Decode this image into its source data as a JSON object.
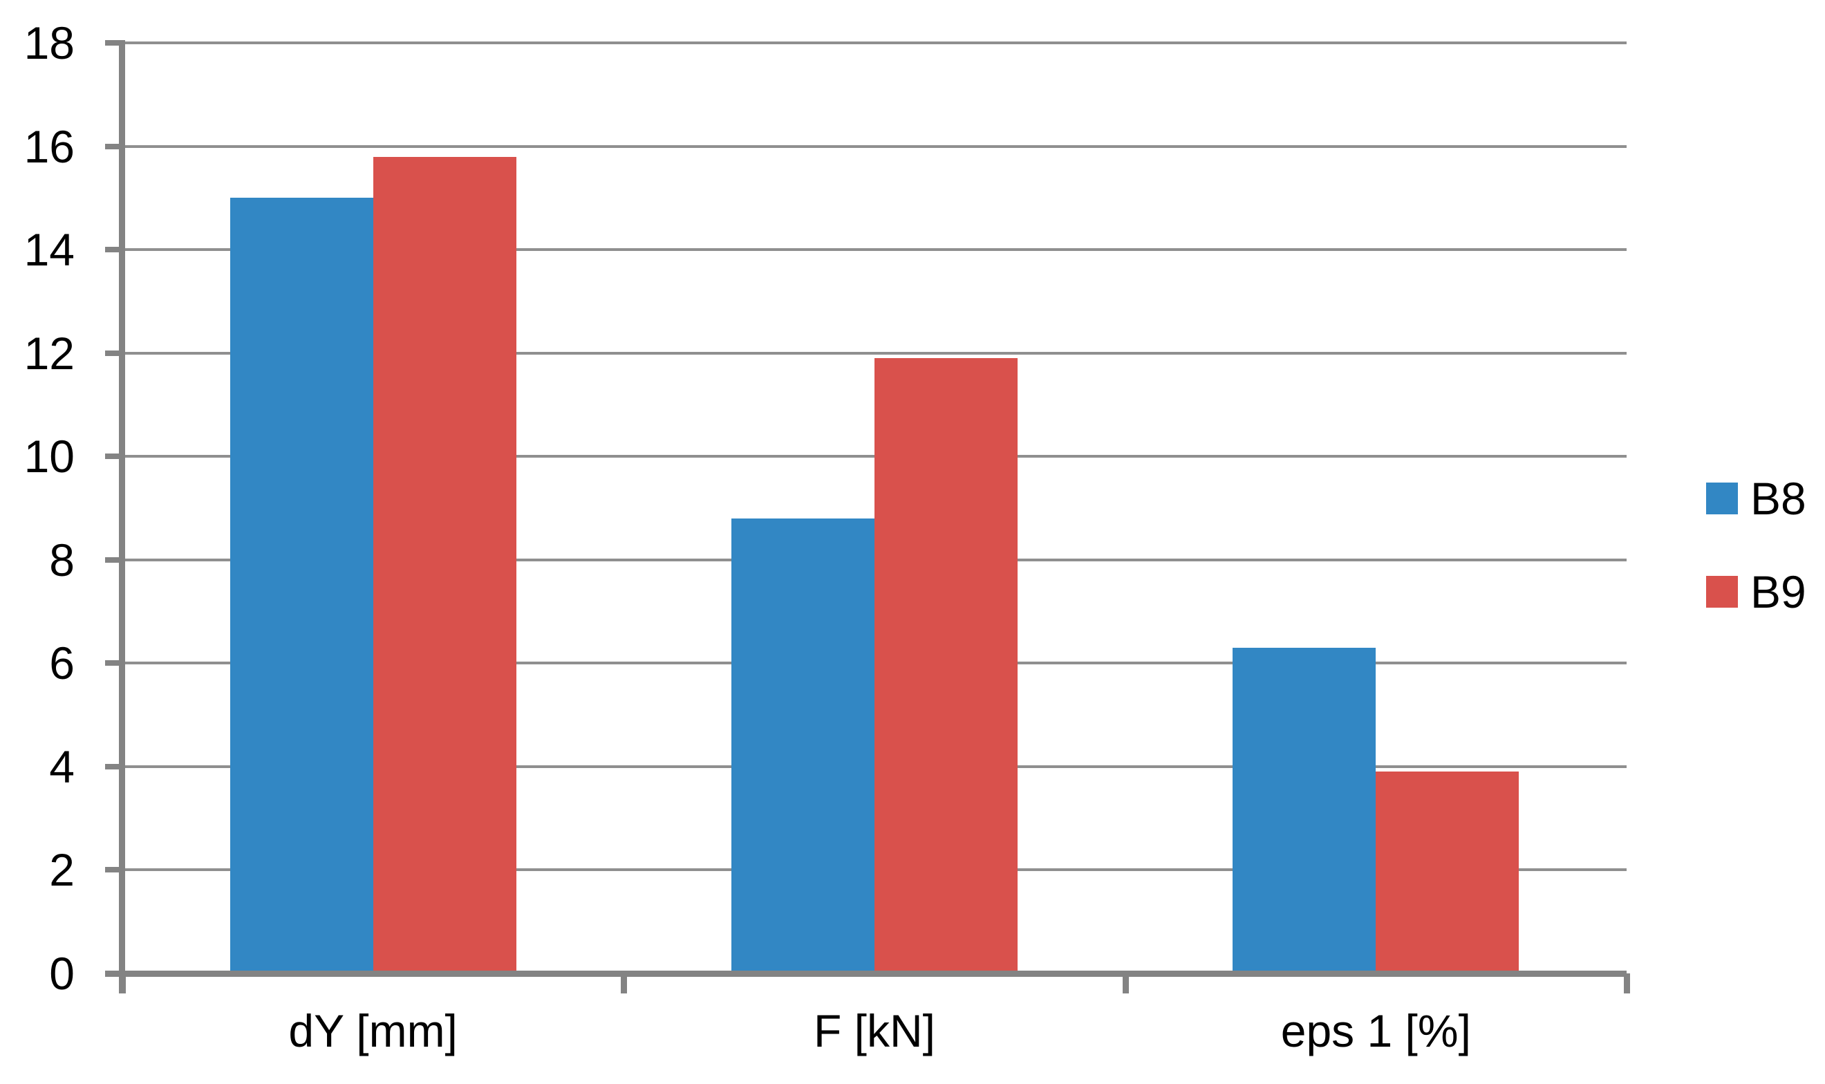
{
  "chart_data": {
    "type": "bar",
    "categories": [
      "dY [mm]",
      "F [kN]",
      "eps 1 [%]"
    ],
    "series": [
      {
        "name": "B8",
        "color": "#3287C4",
        "values": [
          15.0,
          8.8,
          6.3
        ]
      },
      {
        "name": "B9",
        "color": "#D9514C",
        "values": [
          15.8,
          11.9,
          3.9
        ]
      }
    ],
    "title": "",
    "xlabel": "",
    "ylabel": "",
    "ylim": [
      0,
      18
    ],
    "ytick_step": 2,
    "y_tick_labels": [
      "0",
      "2",
      "4",
      "6",
      "8",
      "10",
      "12",
      "14",
      "16",
      "18"
    ],
    "grid": "horizontal-on",
    "gridline_color": "#8F8F8F",
    "axis_color": "#838383",
    "legend_position": "right"
  }
}
